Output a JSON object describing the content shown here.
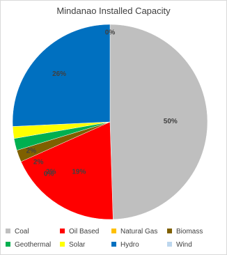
{
  "chart_data": {
    "type": "pie",
    "title": "Mindanao Installed Capacity",
    "categories": [
      "Coal",
      "Oil Based",
      "Natural Gas",
      "Biomass",
      "Geothermal",
      "Solar",
      "Hydro",
      "Wind"
    ],
    "values": [
      50,
      19,
      0,
      2,
      2,
      2,
      26,
      0
    ],
    "data_labels": [
      "50%",
      "19%",
      "0%",
      "2%",
      "2%",
      "2%",
      "26%",
      "0%"
    ],
    "colors": [
      "#bfbfbf",
      "#ff0000",
      "#ffc000",
      "#7f6000",
      "#00b050",
      "#ffff00",
      "#0070c0",
      "#bdd7ee"
    ],
    "legend_position": "bottom"
  }
}
